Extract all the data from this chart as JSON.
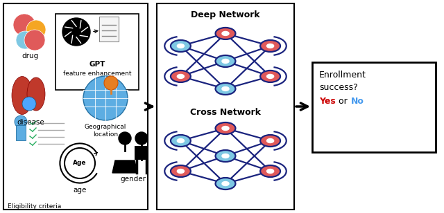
{
  "bg_color": "#ffffff",
  "node_red": "#E05A5A",
  "node_blue": "#7EC8E3",
  "edge_color": "#1a237e",
  "yes_color": "#cc0000",
  "no_color": "#4499ee",
  "deep_network_label": "Deep Network",
  "cross_network_label": "Cross Network",
  "enrollment_line1": "Enrollment",
  "enrollment_line2": "success?",
  "enrollment_line3a": "Yes",
  "enrollment_line3b": " or ",
  "enrollment_line3c": "No",
  "drug_label": "drug",
  "disease_label": "disease",
  "eligibility_label": "Eligibility criteria",
  "gpt_label": "GPT",
  "feature_label": "feature enhancement",
  "geo_label": "Geographical\nlocation",
  "age_label": "age",
  "gender_label": "gender"
}
